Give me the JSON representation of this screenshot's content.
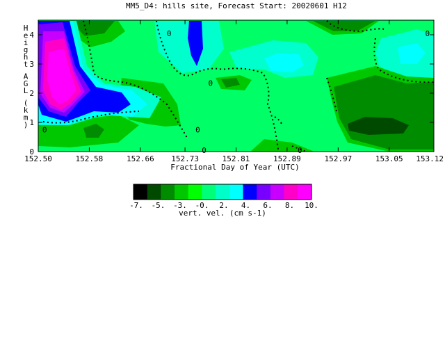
{
  "chart_data": {
    "type": "heatmap",
    "title": "MM5_D4: hills site,  Forecast Start: 20020601 H12",
    "xlabel": "Fractional Day of Year (UTC)",
    "ylabel": "Height AGL (km)",
    "xlim": [
      152.5,
      153.12
    ],
    "ylim": [
      0,
      4.5
    ],
    "x_ticks": [
      "152.50",
      "152.58",
      "152.66",
      "152.73",
      "152.81",
      "152.89",
      "152.97",
      "153.05",
      "153.12"
    ],
    "y_ticks": [
      "0",
      "1",
      "2",
      "3",
      "4"
    ],
    "contour_labels": [
      {
        "text": "0",
        "x": 152.705,
        "y": 4.05
      },
      {
        "text": "0",
        "x": 152.77,
        "y": 2.35
      },
      {
        "text": "0",
        "x": 152.51,
        "y": 0.75
      },
      {
        "text": "0",
        "x": 152.75,
        "y": 0.75
      },
      {
        "text": "0",
        "x": 152.76,
        "y": 0.05
      },
      {
        "text": "0",
        "x": 152.91,
        "y": 0.05
      },
      {
        "text": "0",
        "x": 153.11,
        "y": 4.05
      }
    ],
    "colorbar": {
      "label": "vert. vel. (cm s-1)",
      "tick_labels": [
        "-7.",
        "-5.",
        "-3.",
        "-0.",
        "2.",
        "4.",
        "6.",
        "8.",
        "10."
      ],
      "colors": [
        "#000000",
        "#004a00",
        "#008c00",
        "#00c800",
        "#00ff00",
        "#00ff78",
        "#00ffc8",
        "#00ffff",
        "#0000ff",
        "#7800ff",
        "#c800ff",
        "#ff00c8",
        "#ff00ff"
      ]
    }
  }
}
